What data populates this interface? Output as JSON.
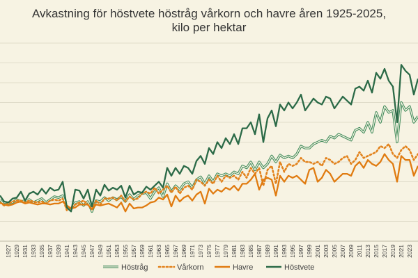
{
  "chart_data": {
    "type": "line",
    "title_line1": "Avkastning för höstvete höstråg vårkorn och havre åren 1925-2025,",
    "title_line2": "kilo per hektar",
    "xlabel": "",
    "ylabel": "",
    "grid": true,
    "legend_position": "bottom",
    "ylim": [
      0,
      10000
    ],
    "x": [
      1925,
      1926,
      1927,
      1928,
      1929,
      1930,
      1931,
      1932,
      1933,
      1934,
      1935,
      1936,
      1937,
      1938,
      1939,
      1940,
      1941,
      1942,
      1943,
      1944,
      1945,
      1946,
      1947,
      1948,
      1949,
      1950,
      1951,
      1952,
      1953,
      1954,
      1955,
      1956,
      1957,
      1958,
      1959,
      1960,
      1961,
      1962,
      1963,
      1964,
      1965,
      1966,
      1967,
      1968,
      1969,
      1970,
      1971,
      1972,
      1973,
      1974,
      1975,
      1976,
      1977,
      1978,
      1979,
      1980,
      1981,
      1982,
      1983,
      1984,
      1985,
      1986,
      1987,
      1988,
      1989,
      1990,
      1991,
      1992,
      1993,
      1994,
      1995,
      1996,
      1997,
      1998,
      1999,
      2000,
      2001,
      2002,
      2003,
      2004,
      2005,
      2006,
      2007,
      2008,
      2009,
      2010,
      2011,
      2012,
      2013,
      2014,
      2015,
      2016,
      2017,
      2018,
      2019,
      2020,
      2021,
      2022,
      2023,
      2024,
      2025
    ],
    "tick_labels": [
      "1927",
      "1929",
      "1931",
      "1933",
      "1935",
      "1937",
      "1939",
      "1941",
      "1943",
      "1945",
      "1947",
      "1949",
      "1951",
      "1953",
      "1955",
      "1957",
      "1959",
      "1961",
      "1963",
      "1965",
      "1967",
      "1969",
      "1971",
      "1973",
      "1975",
      "1977",
      "1979",
      "1981",
      "1983",
      "1985",
      "1987",
      "1989",
      "1991",
      "1993",
      "1995",
      "1997",
      "1999",
      "2001",
      "2003",
      "2005",
      "2007",
      "2009",
      "2011",
      "2013",
      "2015",
      "2017",
      "2019",
      "2021",
      "2023"
    ],
    "series": [
      {
        "name": "Höstråg",
        "color": "#3e8a59",
        "style": "double",
        "values": [
          2100,
          1850,
          1900,
          1950,
          2100,
          2000,
          2050,
          2100,
          1950,
          2050,
          2150,
          1950,
          2100,
          2250,
          2200,
          2300,
          1700,
          1600,
          1950,
          2000,
          1800,
          2000,
          1500,
          2050,
          2000,
          2200,
          2050,
          2200,
          2100,
          2250,
          2000,
          2350,
          2100,
          2300,
          2400,
          2450,
          2150,
          2500,
          2700,
          2250,
          2900,
          2500,
          2800,
          2600,
          2900,
          3000,
          2700,
          3100,
          3250,
          2900,
          3300,
          3000,
          3400,
          3300,
          3400,
          3300,
          3500,
          3400,
          3800,
          3700,
          4000,
          3600,
          4000,
          3700,
          3900,
          4300,
          4000,
          4350,
          4200,
          4300,
          4200,
          4400,
          4800,
          4700,
          4700,
          4900,
          5000,
          5100,
          5000,
          5300,
          5200,
          5400,
          5300,
          5200,
          5100,
          5600,
          5700,
          5500,
          6000,
          5500,
          6500,
          6000,
          6800,
          6500,
          6600,
          5000,
          7000,
          6600,
          6800,
          6000,
          6300
        ]
      },
      {
        "name": "Vårkorn",
        "color": "#e2821c",
        "style": "dotted",
        "values": [
          1950,
          1800,
          1900,
          2000,
          2050,
          2050,
          1950,
          2050,
          2000,
          1950,
          2000,
          1900,
          2050,
          2100,
          2050,
          2150,
          1550,
          1700,
          1850,
          1950,
          2050,
          1850,
          1600,
          2050,
          1850,
          2150,
          2150,
          2200,
          2050,
          2300,
          2000,
          2250,
          2100,
          2150,
          2400,
          2500,
          2400,
          2700,
          2400,
          2600,
          2800,
          2450,
          2750,
          2400,
          2700,
          2800,
          2600,
          3100,
          3000,
          2800,
          3100,
          2900,
          3300,
          3000,
          3300,
          3200,
          3300,
          3100,
          3500,
          3200,
          3700,
          3400,
          3700,
          2800,
          3600,
          3800,
          2900,
          4000,
          3500,
          3900,
          3800,
          3900,
          4200,
          4000,
          4000,
          3900,
          4000,
          3800,
          4200,
          4100,
          3900,
          4000,
          4200,
          4300,
          3900,
          4100,
          4500,
          4200,
          4300,
          4400,
          4500,
          4800,
          4700,
          4900,
          4400,
          4200,
          4600,
          4800,
          4600,
          4100,
          4400
        ]
      },
      {
        "name": "Havre",
        "color": "#e07b10",
        "style": "solid",
        "values": [
          1950,
          1850,
          1800,
          1850,
          1950,
          2000,
          1900,
          1950,
          1900,
          1850,
          1900,
          1900,
          1850,
          1900,
          1900,
          2000,
          1800,
          1650,
          1700,
          1850,
          1850,
          1850,
          1600,
          1850,
          1800,
          1850,
          1900,
          1800,
          1700,
          1950,
          1500,
          1900,
          1650,
          1700,
          1700,
          1800,
          1950,
          2000,
          2200,
          2100,
          2350,
          1750,
          2300,
          2000,
          2200,
          2300,
          2050,
          2350,
          2500,
          1900,
          2650,
          2400,
          2600,
          2500,
          2700,
          2600,
          2800,
          2550,
          2900,
          2900,
          3100,
          3400,
          2600,
          3100,
          3200,
          3100,
          2300,
          3300,
          3000,
          3300,
          3200,
          3300,
          3100,
          2900,
          3600,
          3700,
          3000,
          3200,
          3600,
          3400,
          3000,
          3200,
          3400,
          3400,
          3300,
          3800,
          4000,
          3700,
          4100,
          3900,
          3800,
          4000,
          4400,
          4100,
          3900,
          3000,
          4300,
          4100,
          4100,
          3300,
          3800
        ]
      },
      {
        "name": "Höstvete",
        "color": "#2b6a47",
        "style": "solid",
        "values": [
          2300,
          2000,
          1950,
          2150,
          2200,
          2500,
          2050,
          2400,
          2500,
          2350,
          2650,
          2400,
          2700,
          2550,
          2600,
          3000,
          1700,
          1500,
          2600,
          2550,
          2150,
          2600,
          1750,
          2600,
          2300,
          2850,
          2550,
          2700,
          2600,
          2800,
          2200,
          2800,
          2350,
          2500,
          2450,
          2750,
          2600,
          2800,
          3000,
          2700,
          3700,
          3300,
          3700,
          3400,
          3800,
          3700,
          3400,
          4050,
          4300,
          3900,
          4700,
          4400,
          5000,
          4700,
          5200,
          4900,
          5400,
          4900,
          5700,
          5700,
          6000,
          5400,
          6400,
          5000,
          6200,
          6600,
          5800,
          6900,
          6600,
          7000,
          6700,
          7000,
          7400,
          6600,
          6900,
          7200,
          7000,
          6900,
          7300,
          7200,
          6700,
          7000,
          7300,
          7100,
          6900,
          7700,
          7800,
          7600,
          8100,
          7500,
          8500,
          8200,
          8700,
          8100,
          7800,
          6000,
          8900,
          8600,
          8400,
          7400,
          8200
        ]
      }
    ]
  }
}
